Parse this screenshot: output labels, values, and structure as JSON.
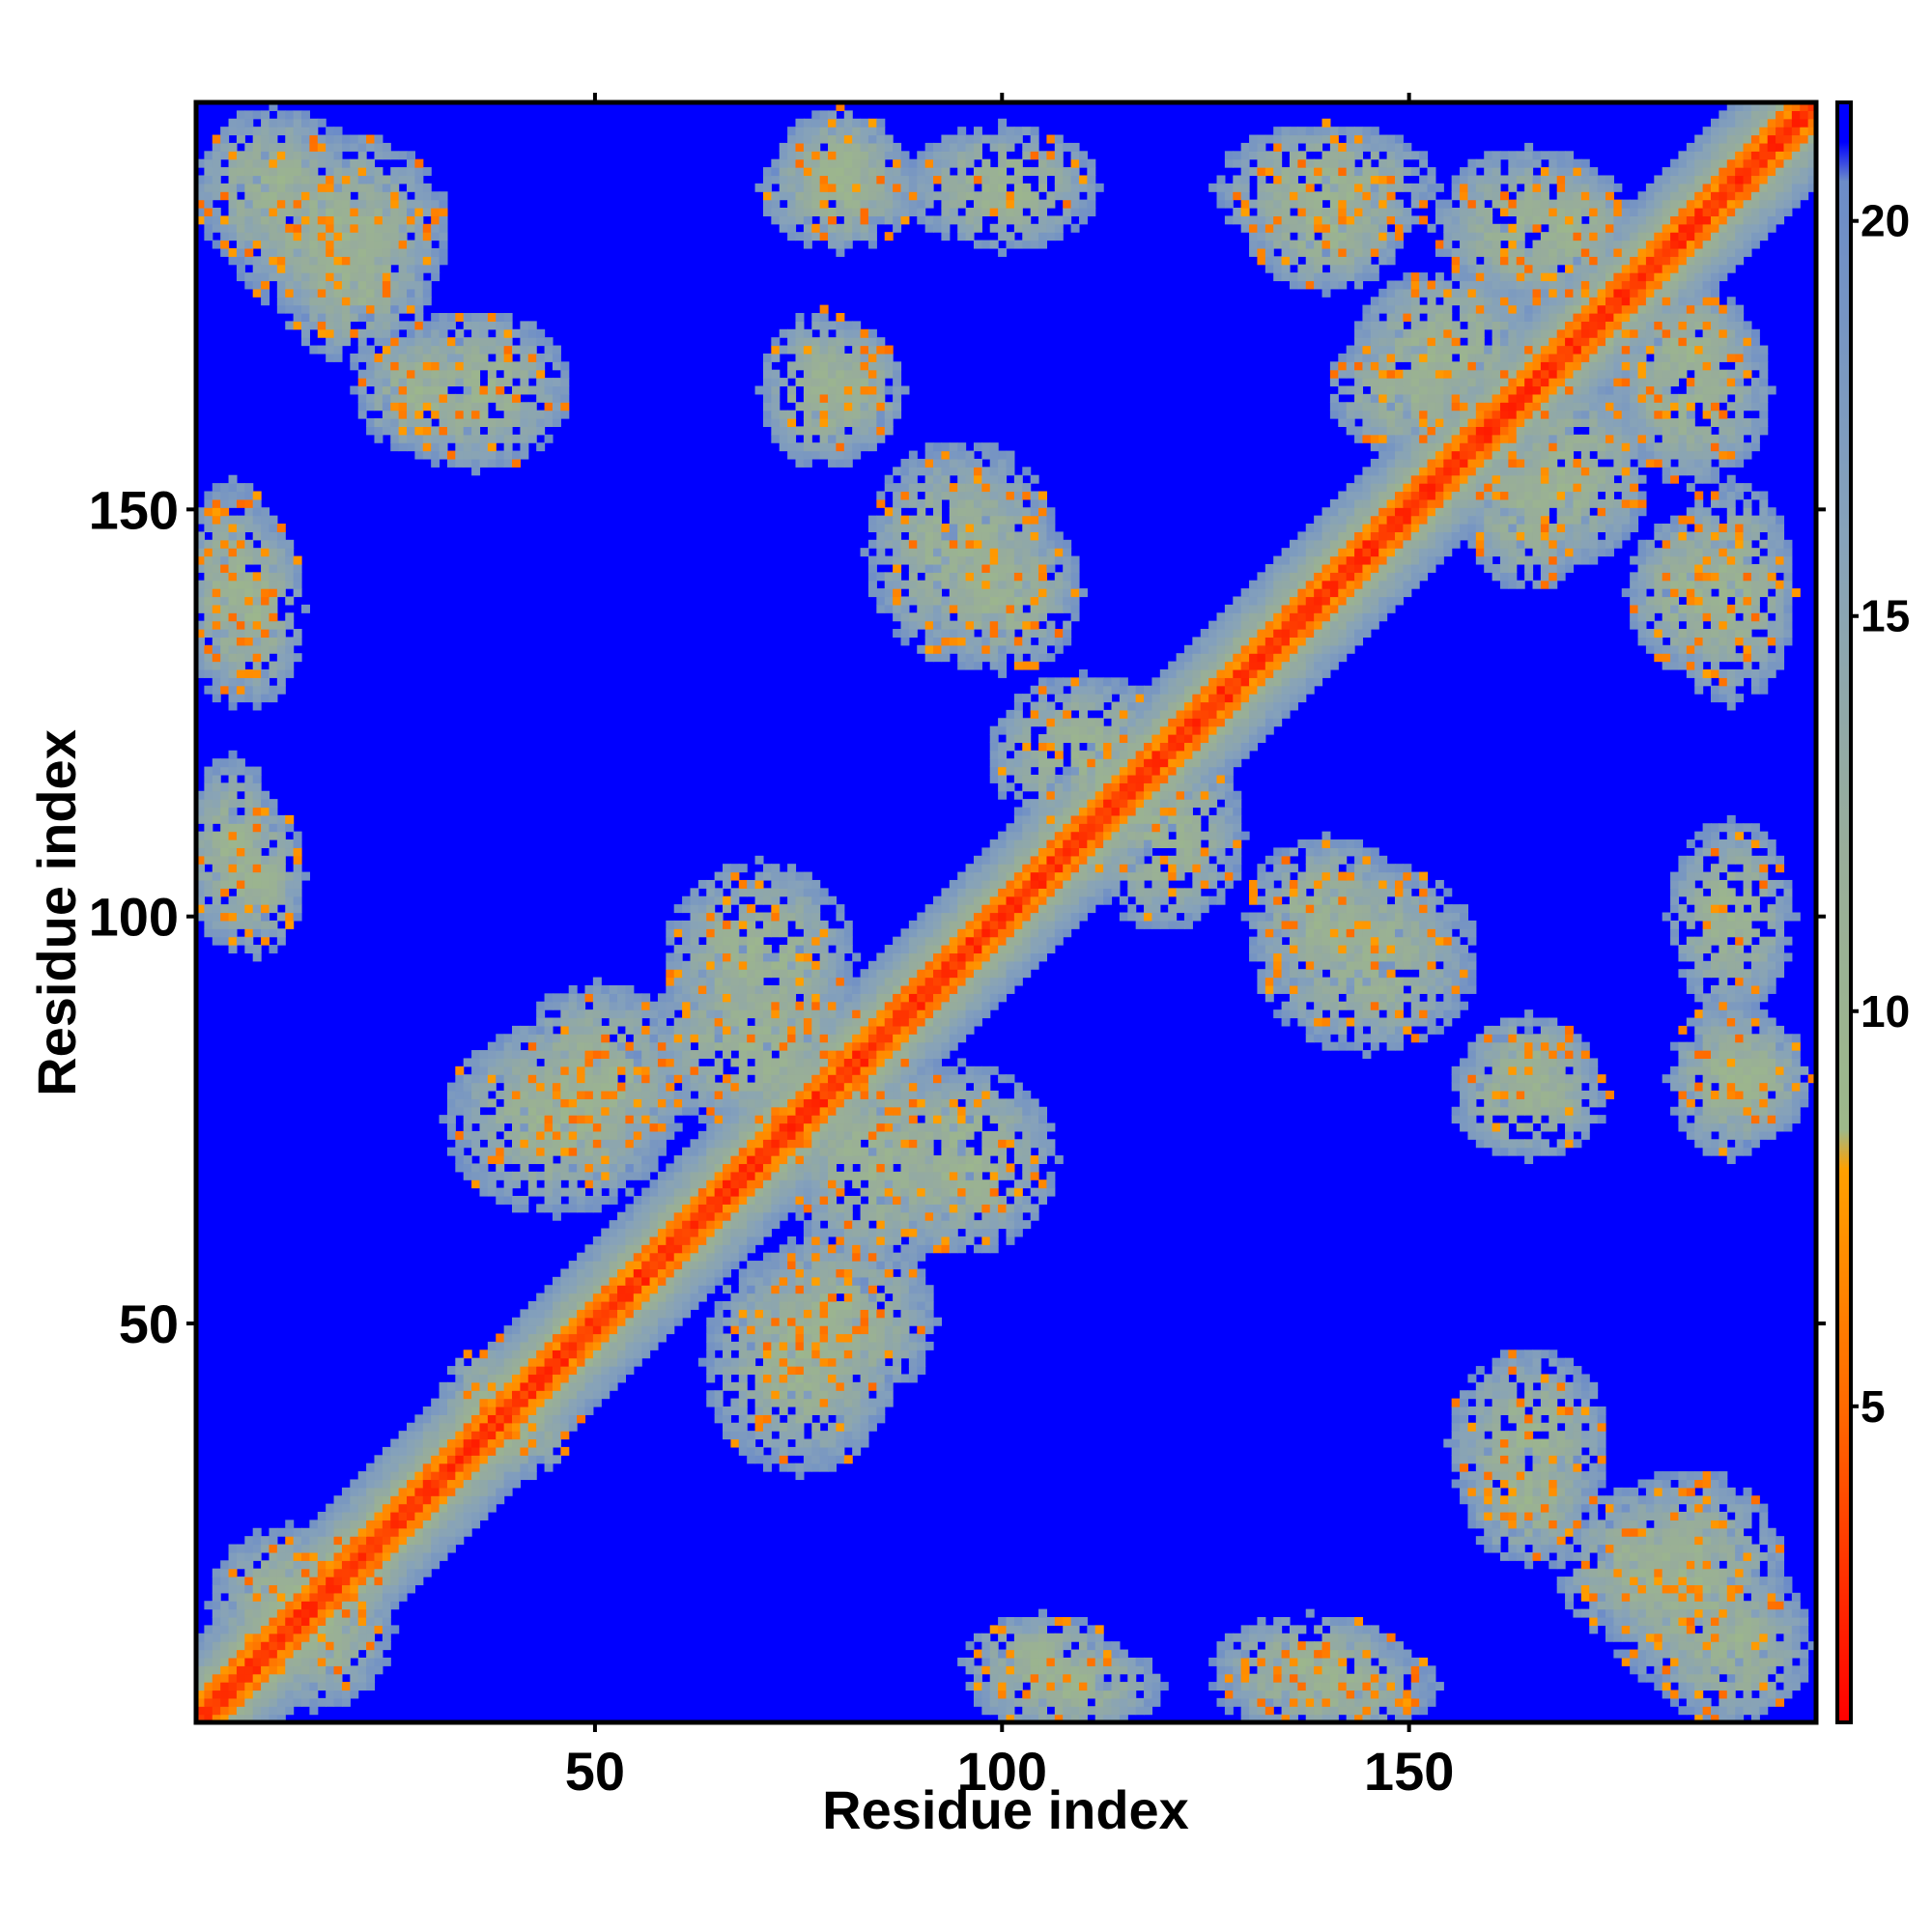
{
  "chart_data": {
    "type": "heatmap",
    "title": "",
    "xlabel": "Residue index",
    "ylabel": "Residue index",
    "n_residues": 200,
    "xlim": [
      1,
      200
    ],
    "ylim": [
      1,
      200
    ],
    "x_ticks": [
      "50",
      "100",
      "150"
    ],
    "y_ticks": [
      "50",
      "100",
      "150"
    ],
    "colorbar": {
      "ticks": [
        "5",
        "10",
        "15",
        "20"
      ],
      "min": 1,
      "max": 21.5,
      "stops": [
        {
          "value": 1,
          "color": "#ff0000"
        },
        {
          "value": 5,
          "color": "#ff6a00"
        },
        {
          "value": 8,
          "color": "#ffa000"
        },
        {
          "value": 8.5,
          "color": "#9db88a"
        },
        {
          "value": 12,
          "color": "#98ad9a"
        },
        {
          "value": 16,
          "color": "#86a2ba"
        },
        {
          "value": 20.5,
          "color": "#6c8cc8"
        },
        {
          "value": 21,
          "color": "#0000ff"
        }
      ]
    },
    "background_value": 21,
    "diagonal": {
      "core_width": 3,
      "band_width": 10
    },
    "contact_regions": [
      {
        "cx": 10,
        "cy": 190,
        "rx": 10,
        "ry": 10
      },
      {
        "cx": 20,
        "cy": 180,
        "rx": 10,
        "ry": 12
      },
      {
        "cx": 28,
        "cy": 165,
        "rx": 8,
        "ry": 8
      },
      {
        "cx": 80,
        "cy": 192,
        "rx": 8,
        "ry": 8
      },
      {
        "cx": 5,
        "cy": 140,
        "rx": 6,
        "ry": 14
      },
      {
        "cx": 5,
        "cy": 108,
        "rx": 6,
        "ry": 12
      },
      {
        "cx": 82,
        "cy": 165,
        "rx": 6,
        "ry": 8
      },
      {
        "cx": 95,
        "cy": 145,
        "rx": 12,
        "ry": 14
      },
      {
        "cx": 120,
        "cy": 110,
        "rx": 10,
        "ry": 12
      },
      {
        "cx": 140,
        "cy": 100,
        "rx": 10,
        "ry": 10
      },
      {
        "cx": 140,
        "cy": 185,
        "rx": 10,
        "ry": 8
      },
      {
        "cx": 155,
        "cy": 170,
        "rx": 12,
        "ry": 10
      },
      {
        "cx": 165,
        "cy": 150,
        "rx": 8,
        "ry": 10
      },
      {
        "cx": 170,
        "cy": 185,
        "rx": 8,
        "ry": 8
      },
      {
        "cx": 185,
        "cy": 165,
        "rx": 10,
        "ry": 12
      },
      {
        "cx": 190,
        "cy": 140,
        "rx": 8,
        "ry": 14
      },
      {
        "cx": 190,
        "cy": 100,
        "rx": 8,
        "ry": 12
      },
      {
        "cx": 165,
        "cy": 78,
        "rx": 10,
        "ry": 8
      },
      {
        "cx": 190,
        "cy": 80,
        "rx": 8,
        "ry": 10
      },
      {
        "cx": 165,
        "cy": 35,
        "rx": 10,
        "ry": 12
      },
      {
        "cx": 185,
        "cy": 18,
        "rx": 12,
        "ry": 14
      },
      {
        "cx": 105,
        "cy": 8,
        "rx": 10,
        "ry": 6
      },
      {
        "cx": 138,
        "cy": 8,
        "rx": 12,
        "ry": 6
      },
      {
        "cx": 75,
        "cy": 45,
        "rx": 12,
        "ry": 14
      },
      {
        "cx": 85,
        "cy": 70,
        "rx": 12,
        "ry": 14
      },
      {
        "cx": 50,
        "cy": 80,
        "rx": 12,
        "ry": 12
      },
      {
        "cx": 70,
        "cy": 95,
        "rx": 12,
        "ry": 12
      },
      {
        "cx": 12,
        "cy": 15,
        "rx": 10,
        "ry": 10
      },
      {
        "cx": 40,
        "cy": 38,
        "rx": 8,
        "ry": 8
      }
    ]
  }
}
